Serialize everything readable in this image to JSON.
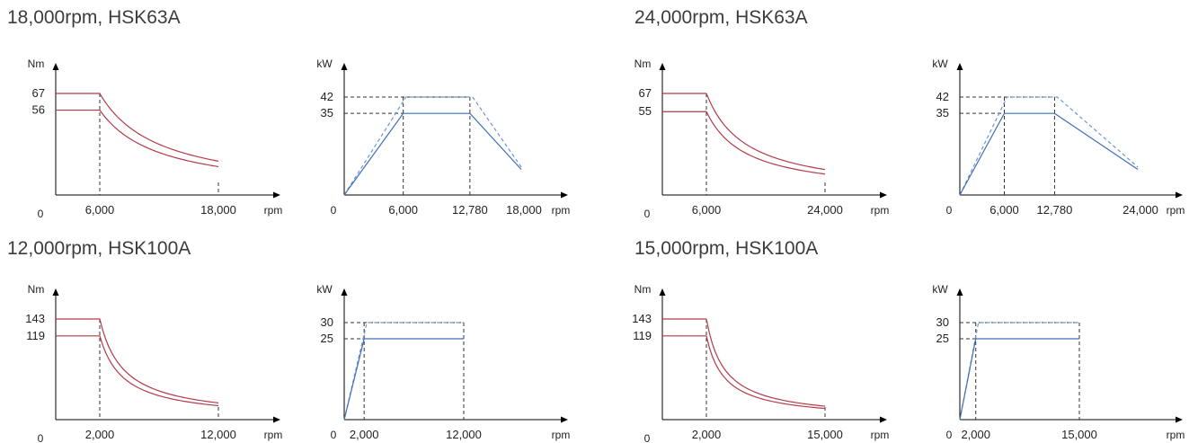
{
  "colors": {
    "torque_line": "#b23a48",
    "power_line": "#3d6fb6",
    "power_dashed": "#6e97cc",
    "axis": "#000000",
    "guide": "#333333",
    "title_text": "#3c3c3c"
  },
  "chart_data": [
    {
      "title": "18,000rpm, HSK63A",
      "torque": {
        "type": "line",
        "y_unit": "Nm",
        "x_unit": "rpm",
        "origin_label": "0",
        "x_ticks": [
          6000,
          18000
        ],
        "x_tick_labels": [
          "6,000",
          "18,000"
        ],
        "y_ticks": [
          67,
          56
        ],
        "y_tick_labels": [
          "67",
          "56"
        ],
        "xlim": [
          0,
          18000
        ],
        "series": [
          {
            "values": [
              [
                0,
                67
              ],
              [
                6000,
                67
              ],
              [
                18000,
                22.3
              ]
            ]
          },
          {
            "values": [
              [
                0,
                56
              ],
              [
                6000,
                56
              ],
              [
                18000,
                18.7
              ]
            ]
          }
        ]
      },
      "power": {
        "type": "line",
        "y_unit": "kW",
        "x_unit": "rpm",
        "origin_label": "0",
        "x_ticks": [
          6000,
          12780,
          18000
        ],
        "x_tick_labels": [
          "6,000",
          "12,780",
          "18,000"
        ],
        "y_ticks": [
          42,
          35
        ],
        "y_tick_labels": [
          "42",
          "35"
        ],
        "xlim": [
          0,
          18000
        ],
        "series": [
          {
            "style": "dashed",
            "values": [
              [
                0,
                0
              ],
              [
                6000,
                42
              ],
              [
                12780,
                42
              ],
              [
                18000,
                12
              ]
            ]
          },
          {
            "style": "solid",
            "values": [
              [
                0,
                0
              ],
              [
                6000,
                35
              ],
              [
                12780,
                35
              ],
              [
                18000,
                11
              ]
            ]
          }
        ]
      }
    },
    {
      "title": "24,000rpm, HSK63A",
      "torque": {
        "type": "line",
        "y_unit": "Nm",
        "x_unit": "rpm",
        "origin_label": "0",
        "x_ticks": [
          6000,
          24000
        ],
        "x_tick_labels": [
          "6,000",
          "24,000"
        ],
        "y_ticks": [
          67,
          55
        ],
        "y_tick_labels": [
          "67",
          "55"
        ],
        "xlim": [
          0,
          24000
        ],
        "series": [
          {
            "values": [
              [
                0,
                67
              ],
              [
                6000,
                67
              ],
              [
                24000,
                16.8
              ]
            ]
          },
          {
            "values": [
              [
                0,
                55
              ],
              [
                6000,
                55
              ],
              [
                24000,
                13.8
              ]
            ]
          }
        ]
      },
      "power": {
        "type": "line",
        "y_unit": "kW",
        "x_unit": "rpm",
        "origin_label": "0",
        "x_ticks": [
          6000,
          12780,
          24000
        ],
        "x_tick_labels": [
          "6,000",
          "12,780",
          "24,000"
        ],
        "y_ticks": [
          42,
          35
        ],
        "y_tick_labels": [
          "42",
          "35"
        ],
        "xlim": [
          0,
          24000
        ],
        "series": [
          {
            "style": "dashed",
            "values": [
              [
                0,
                0
              ],
              [
                6000,
                42
              ],
              [
                12780,
                42
              ],
              [
                24000,
                12
              ]
            ]
          },
          {
            "style": "solid",
            "values": [
              [
                0,
                0
              ],
              [
                6000,
                35
              ],
              [
                12780,
                35
              ],
              [
                24000,
                11
              ]
            ]
          }
        ]
      }
    },
    {
      "title": "12,000rpm, HSK100A",
      "torque": {
        "type": "line",
        "y_unit": "Nm",
        "x_unit": "rpm",
        "origin_label": "0",
        "x_ticks": [
          2000,
          12000
        ],
        "x_tick_labels": [
          "2,000",
          "12,000"
        ],
        "y_ticks": [
          143,
          119
        ],
        "y_tick_labels": [
          "143",
          "119"
        ],
        "xlim": [
          0,
          12000
        ],
        "series": [
          {
            "values": [
              [
                0,
                143
              ],
              [
                2000,
                143
              ],
              [
                12000,
                23.8
              ]
            ]
          },
          {
            "values": [
              [
                0,
                119
              ],
              [
                2000,
                119
              ],
              [
                12000,
                19.8
              ]
            ]
          }
        ]
      },
      "power": {
        "type": "line",
        "y_unit": "kW",
        "x_unit": "rpm",
        "origin_label": "0",
        "x_ticks": [
          2000,
          12000
        ],
        "x_tick_labels": [
          "2,000",
          "12,000"
        ],
        "y_ticks": [
          30,
          25
        ],
        "y_tick_labels": [
          "30",
          "25"
        ],
        "xlim": [
          0,
          12000
        ],
        "series": [
          {
            "style": "dashed",
            "values": [
              [
                0,
                0
              ],
              [
                2000,
                30
              ],
              [
                12000,
                30
              ]
            ]
          },
          {
            "style": "solid",
            "values": [
              [
                0,
                0
              ],
              [
                2000,
                25
              ],
              [
                12000,
                25
              ]
            ]
          }
        ]
      }
    },
    {
      "title": "15,000rpm, HSK100A",
      "torque": {
        "type": "line",
        "y_unit": "Nm",
        "x_unit": "rpm",
        "origin_label": "0",
        "x_ticks": [
          2000,
          15000
        ],
        "x_tick_labels": [
          "2,000",
          "15,000"
        ],
        "y_ticks": [
          143,
          119
        ],
        "y_tick_labels": [
          "143",
          "119"
        ],
        "xlim": [
          0,
          15000
        ],
        "series": [
          {
            "values": [
              [
                0,
                143
              ],
              [
                2000,
                143
              ],
              [
                15000,
                19.1
              ]
            ]
          },
          {
            "values": [
              [
                0,
                119
              ],
              [
                2000,
                119
              ],
              [
                15000,
                15.9
              ]
            ]
          }
        ]
      },
      "power": {
        "type": "line",
        "y_unit": "kW",
        "x_unit": "rpm",
        "origin_label": "0",
        "x_ticks": [
          2000,
          15000
        ],
        "x_tick_labels": [
          "2,000",
          "15,000"
        ],
        "y_ticks": [
          30,
          25
        ],
        "y_tick_labels": [
          "30",
          "25"
        ],
        "xlim": [
          0,
          15000
        ],
        "series": [
          {
            "style": "dashed",
            "values": [
              [
                0,
                0
              ],
              [
                2000,
                30
              ],
              [
                15000,
                30
              ]
            ]
          },
          {
            "style": "solid",
            "values": [
              [
                0,
                0
              ],
              [
                2000,
                25
              ],
              [
                15000,
                25
              ]
            ]
          }
        ]
      }
    }
  ]
}
